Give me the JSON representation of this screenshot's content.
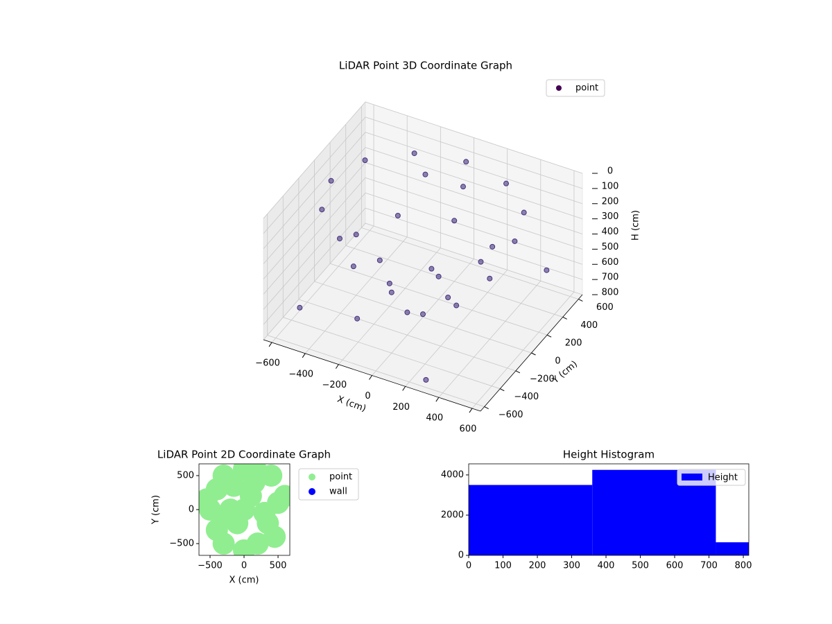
{
  "chart_data": [
    {
      "type": "scatter3d",
      "title": "LiDAR Point 3D Coordinate Graph",
      "xlabel": "X (cm)",
      "ylabel": "Y (cm)",
      "zlabel": "H (cm)",
      "xlim": [
        -650,
        650
      ],
      "ylim": [
        -650,
        650
      ],
      "zlim": [
        800,
        0
      ],
      "xticks": [
        {
          "value": -600,
          "label": "−600"
        },
        {
          "value": -400,
          "label": "−400"
        },
        {
          "value": -200,
          "label": "−200"
        },
        0,
        200,
        400,
        600
      ],
      "yticks": [
        {
          "value": -600,
          "label": "−600"
        },
        {
          "value": -400,
          "label": "−400"
        },
        {
          "value": -200,
          "label": "−200"
        },
        0,
        200,
        400,
        600
      ],
      "zticks": [
        0,
        100,
        200,
        300,
        400,
        500,
        600,
        700,
        800
      ],
      "grid": true,
      "legend": "upper right",
      "series": [
        {
          "name": "point",
          "color": "#46327e",
          "legend_color": "#440154",
          "x": [
            550,
            476,
            275,
            0,
            -275,
            -476,
            -550,
            -476,
            -275,
            0,
            275,
            476,
            400,
            283,
            0,
            -283,
            -400,
            -283,
            0,
            283,
            200,
            0,
            -200,
            0,
            0,
            -550,
            300,
            600,
            -300,
            100,
            -150
          ],
          "y": [
            0,
            275,
            476,
            550,
            476,
            275,
            0,
            -275,
            -476,
            -550,
            -476,
            -275,
            0,
            283,
            400,
            283,
            0,
            -283,
            -400,
            -283,
            0,
            200,
            0,
            -200,
            0,
            -400,
            -600,
            300,
            -200,
            300,
            350
          ],
          "z": [
            100,
            100,
            100,
            100,
            100,
            100,
            100,
            100,
            100,
            100,
            100,
            100,
            400,
            400,
            400,
            400,
            400,
            400,
            400,
            400,
            650,
            650,
            650,
            650,
            780,
            700,
            750,
            450,
            800,
            80,
            120
          ]
        }
      ]
    },
    {
      "type": "scatter",
      "title": "LiDAR Point 2D Coordinate Graph",
      "xlabel": "X (cm)",
      "ylabel": "Y (cm)",
      "xlim": [
        -663,
        673
      ],
      "ylim": [
        -673,
        673
      ],
      "xticks": [
        {
          "value": -500,
          "label": "−500"
        },
        0,
        500
      ],
      "yticks": [
        {
          "value": -500,
          "label": "−500"
        },
        0,
        500
      ],
      "legend": "outside right",
      "series": [
        {
          "name": "point",
          "color": "#90ee90",
          "x": [
            -500,
            -400,
            -300,
            0,
            200,
            -400,
            -300,
            0,
            200,
            -200,
            0,
            100,
            -100,
            400,
            500,
            350,
            450,
            300,
            600,
            -550,
            -150,
            150,
            -250
          ],
          "y": [
            0,
            300,
            500,
            600,
            550,
            -300,
            -500,
            -600,
            -500,
            0,
            0,
            200,
            -200,
            500,
            100,
            -200,
            -400,
            -50,
            200,
            150,
            350,
            400,
            -100
          ]
        },
        {
          "name": "wall",
          "color": "#0000ff",
          "x": [],
          "y": []
        }
      ]
    },
    {
      "type": "histogram",
      "title": "Height Histogram",
      "bins": [
        0,
        360,
        720,
        816
      ],
      "series": [
        {
          "name": "Height",
          "color": "#0000ff",
          "values": [
            3500,
            4250,
            650
          ]
        }
      ],
      "xlim": [
        0,
        816
      ],
      "ylim": [
        0,
        4550
      ],
      "xticks": [
        0,
        100,
        200,
        300,
        400,
        500,
        600,
        700,
        800
      ],
      "yticks": [
        0,
        2000,
        4000
      ],
      "legend": "upper right"
    }
  ]
}
